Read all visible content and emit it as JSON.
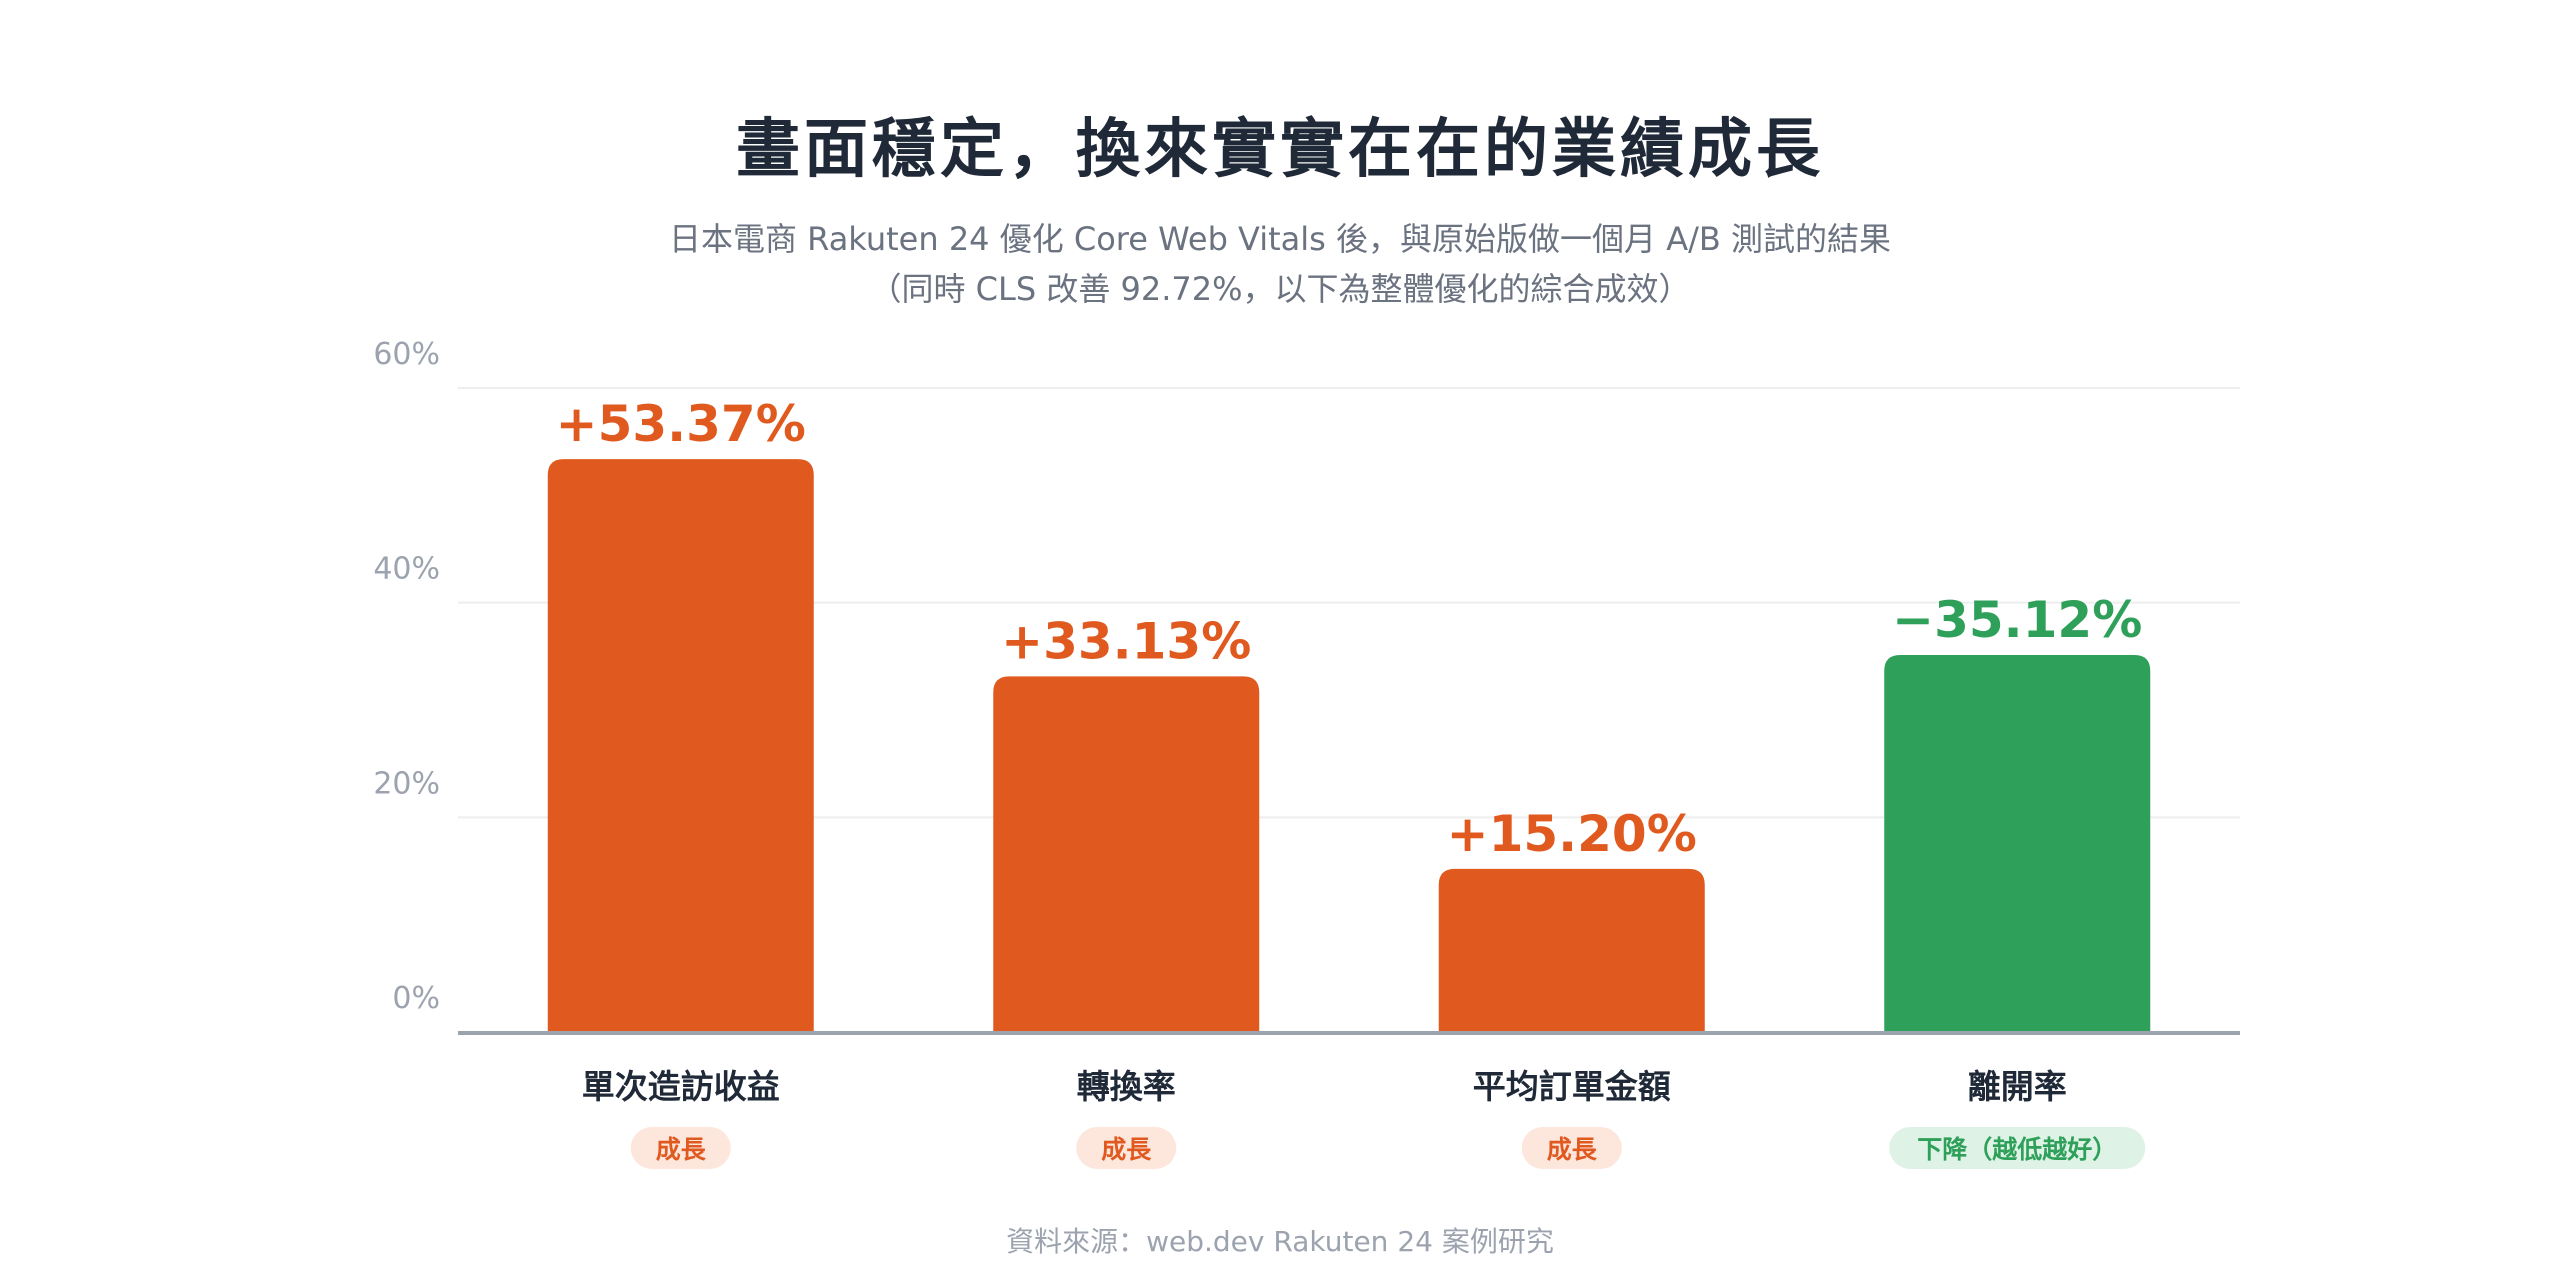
{
  "chart_data": {
    "type": "bar",
    "title": "畫面穩定，換來實實在在的業績成長",
    "subtitle_line1": "日本電商 Rakuten 24 優化 Core Web Vitals 後，與原始版做一個月 A/B 測試的結果",
    "subtitle_line2": "（同時 CLS 改善 92.72%，以下為整體優化的綜合成效）",
    "categories": [
      "單次造訪收益",
      "轉換率",
      "平均訂單金額",
      "離開率"
    ],
    "values": [
      53.37,
      33.13,
      15.2,
      35.12
    ],
    "value_labels": [
      "+53.37%",
      "+33.13%",
      "+15.20%",
      "−35.12%"
    ],
    "tags": [
      "成長",
      "成長",
      "成長",
      "下降（越低越好）"
    ],
    "tag_types": [
      "growth",
      "growth",
      "growth",
      "decline"
    ],
    "ylim": [
      0,
      60
    ],
    "yticks": [
      0,
      20,
      40,
      60
    ],
    "ytick_labels": [
      "0%",
      "20%",
      "40%",
      "60%"
    ],
    "grid": true,
    "colors": {
      "growth": "#e05a20",
      "decline": "#2ea05a",
      "growth_tag_bg": "#fde6dc",
      "decline_tag_bg": "#dff2e6",
      "axis": "#9ca3af",
      "grid": "#eeeeee",
      "tick_text": "#9ca3af",
      "category_text": "#1f2937"
    },
    "source": "資料來源：web.dev Rakuten 24 案例研究"
  }
}
